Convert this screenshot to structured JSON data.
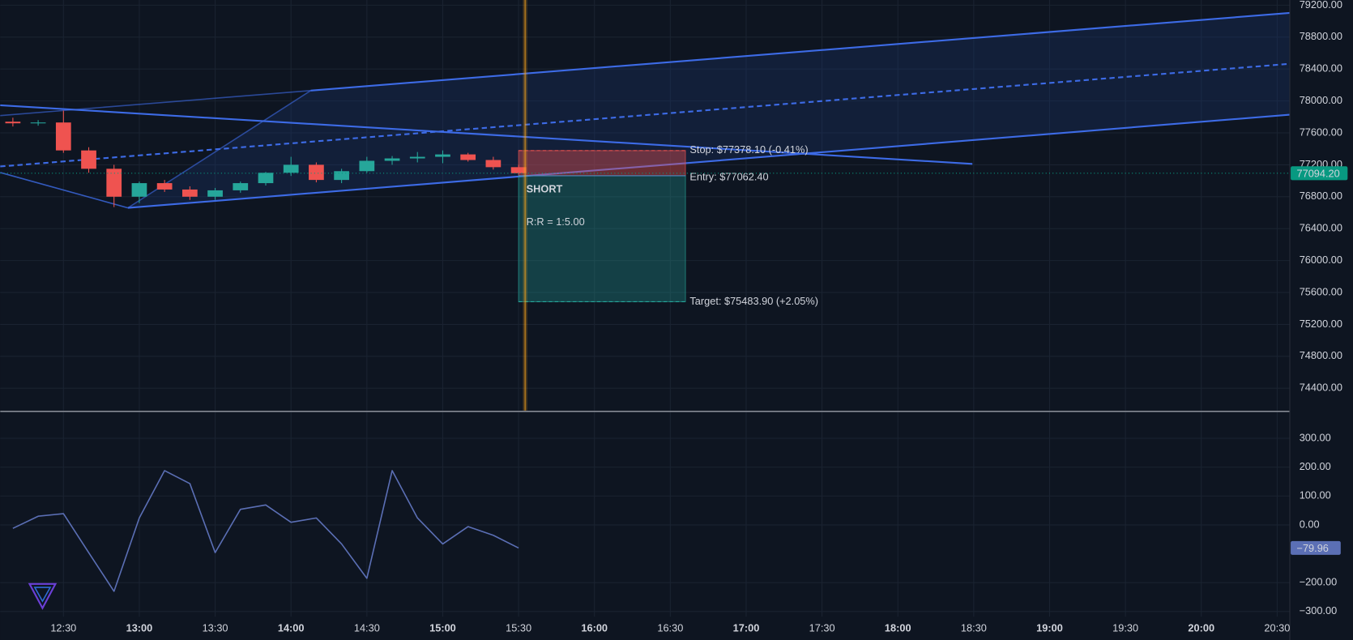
{
  "chart_data": [
    {
      "type": "candlestick",
      "x": [
        "12:10",
        "12:20",
        "12:30",
        "12:40",
        "12:50",
        "13:00",
        "13:10",
        "13:20",
        "13:30",
        "13:40",
        "13:50",
        "14:00",
        "14:10",
        "14:20",
        "14:30",
        "14:40",
        "14:50",
        "15:00",
        "15:10",
        "15:20",
        "15:30"
      ],
      "open": [
        77740,
        77720,
        77730,
        77380,
        77150,
        76800,
        76970,
        76890,
        76800,
        76880,
        76970,
        77100,
        77200,
        77010,
        77120,
        77250,
        77280,
        77300,
        77330,
        77260,
        77170
      ],
      "high": [
        77790,
        77760,
        77880,
        77420,
        77200,
        76990,
        77010,
        76930,
        76910,
        76990,
        77110,
        77300,
        77230,
        77150,
        77300,
        77310,
        77360,
        77380,
        77350,
        77300,
        77200
      ],
      "low": [
        77680,
        77690,
        77350,
        77100,
        76670,
        76720,
        76860,
        76760,
        76760,
        76850,
        76940,
        77060,
        76980,
        76970,
        77100,
        77200,
        77230,
        77220,
        77240,
        77140,
        77080
      ],
      "close": [
        77720,
        77730,
        77380,
        77150,
        76800,
        76970,
        76890,
        76800,
        76880,
        76970,
        77100,
        77200,
        77010,
        77120,
        77250,
        77280,
        77300,
        77330,
        77260,
        77170,
        77094.2
      ],
      "up_color": "#26a69a",
      "down_color": "#ef5350",
      "xlim": [
        "12:05",
        "20:35"
      ],
      "ylim": [
        74120,
        79265
      ],
      "yticks": [
        {
          "value": 74400,
          "label": "74400.00"
        },
        {
          "value": 74800,
          "label": "74800.00"
        },
        {
          "value": 75200,
          "label": "75200.00"
        },
        {
          "value": 75600,
          "label": "75600.00"
        },
        {
          "value": 76000,
          "label": "76000.00"
        },
        {
          "value": 76400,
          "label": "76400.00"
        },
        {
          "value": 76800,
          "label": "76800.00"
        },
        {
          "value": 77200,
          "label": "77200.00"
        },
        {
          "value": 77600,
          "label": "77600.00"
        },
        {
          "value": 78000,
          "label": "78000.00"
        },
        {
          "value": 78400,
          "label": "78400.00"
        },
        {
          "value": 78800,
          "label": "78800.00"
        },
        {
          "value": 79200,
          "label": "79200.00"
        }
      ],
      "grid": true,
      "last_price": {
        "value": 77094.2,
        "label": "77094.20",
        "color": "#089981"
      },
      "position": {
        "label": "SHORT",
        "ratio_label": "R:R = 1:5.00",
        "start": "15:30",
        "end": "16:36",
        "stop": 77378.1,
        "stop_label": "Stop: $77378.10 (-0.41%)",
        "entry": 77062.4,
        "entry_label": "Entry: $77062.40",
        "target": 75483.9,
        "target_label": "Target: $75483.90 (+2.05%)"
      }
    },
    {
      "type": "line",
      "x": [
        "12:10",
        "12:20",
        "12:30",
        "12:40",
        "12:50",
        "13:00",
        "13:10",
        "13:20",
        "13:30",
        "13:40",
        "13:50",
        "14:00",
        "14:10",
        "14:20",
        "14:30",
        "14:40",
        "14:50",
        "15:00",
        "15:10",
        "15:20",
        "15:30"
      ],
      "values": [
        -12,
        30,
        39,
        -96,
        -230,
        24,
        188,
        143,
        -96,
        54,
        69,
        9,
        24,
        -66,
        -185,
        188,
        24,
        -66,
        -6,
        -36,
        -79.96
      ],
      "value_labels": [
        null,
        null,
        null,
        null,
        null,
        null,
        null,
        null,
        null,
        null,
        null,
        null,
        null,
        null,
        null,
        null,
        null,
        null,
        null,
        null,
        "−79.96"
      ],
      "color": "#5b6fb5",
      "xlim": [
        "12:05",
        "20:35"
      ],
      "ylim": [
        -318,
        390
      ],
      "yticks": [
        {
          "value": 300,
          "label": "300.00"
        },
        {
          "value": 200,
          "label": "200.00"
        },
        {
          "value": 100,
          "label": "100.00"
        },
        {
          "value": 0,
          "label": "0.00"
        },
        {
          "value": -200,
          "label": "−200.00"
        },
        {
          "value": -300,
          "label": "−300.00"
        }
      ],
      "xticks": [
        "12:30",
        "13:00",
        "13:30",
        "14:00",
        "14:30",
        "15:00",
        "15:30",
        "16:00",
        "16:30",
        "17:00",
        "17:30",
        "18:00",
        "18:30",
        "19:00",
        "19:30",
        "20:00",
        "20:30"
      ],
      "grid": true
    }
  ]
}
